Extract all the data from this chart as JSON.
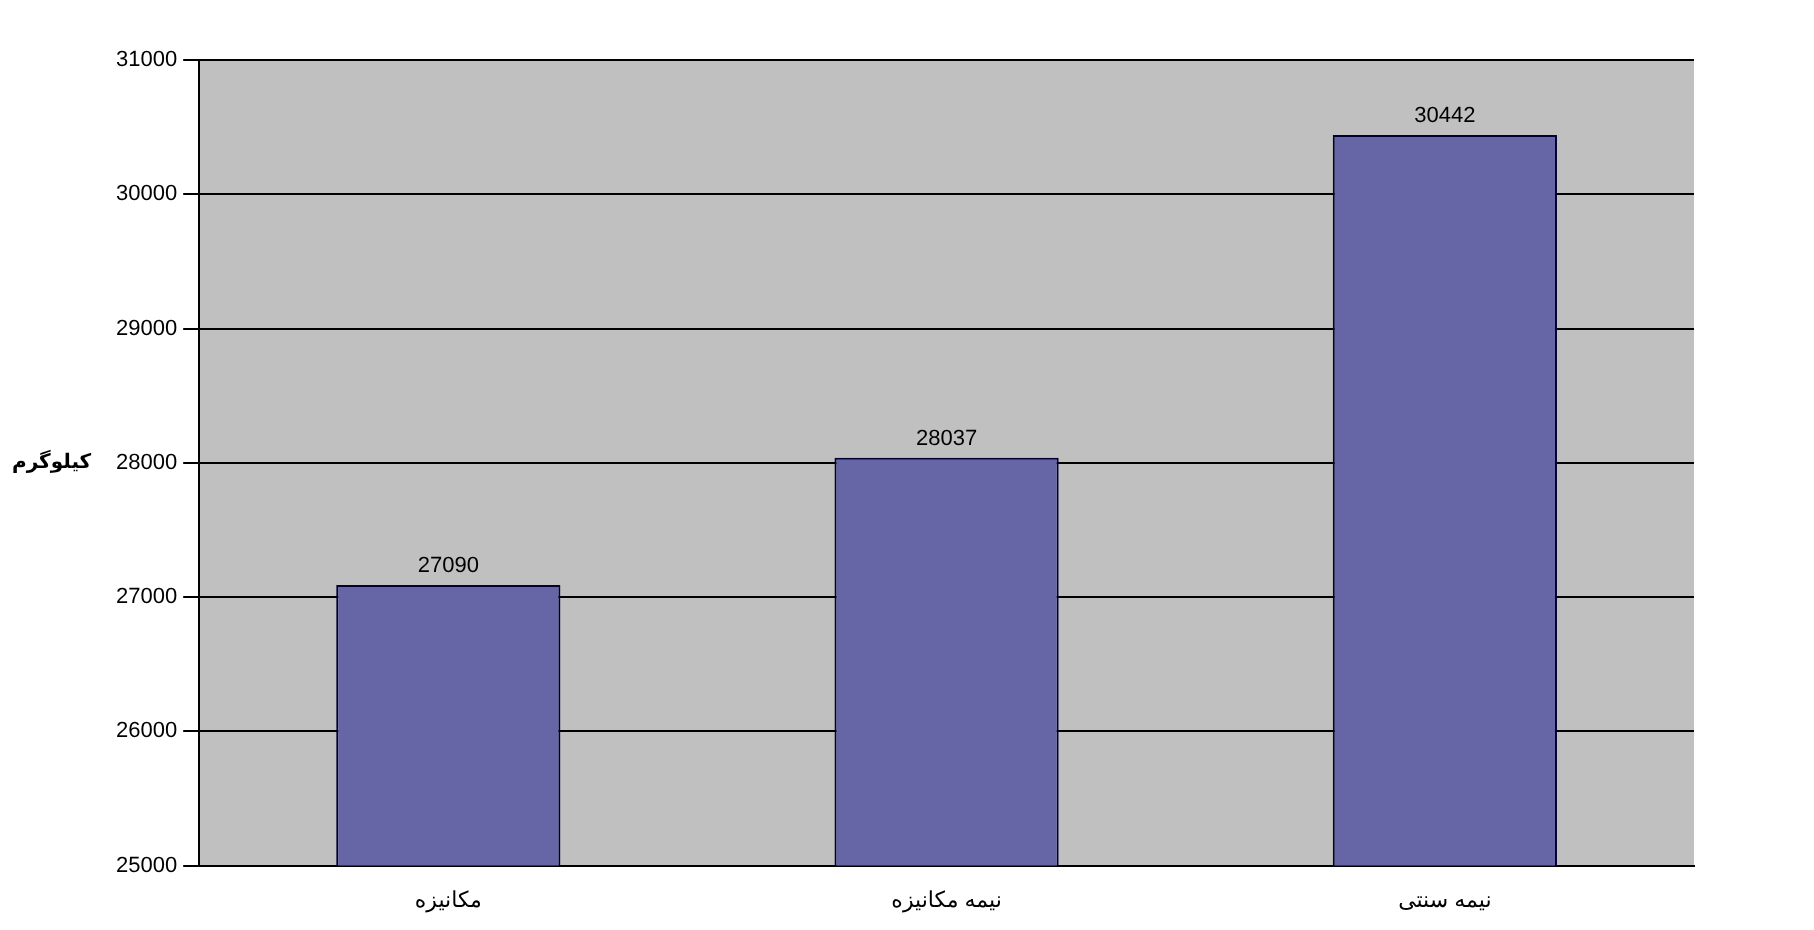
{
  "chart_data": {
    "type": "bar",
    "ylabel": "کیلوگرم",
    "categories": [
      "مکانیزه",
      "نیمه مکانیزه",
      "نیمه سنتی"
    ],
    "values": [
      27090,
      28037,
      30442
    ],
    "color": "#6666a6",
    "ylim": [
      25000,
      31000
    ],
    "yticks": [
      25000,
      26000,
      27000,
      28000,
      29000,
      30000,
      31000
    ],
    "grid": "y",
    "data_labels": true
  }
}
